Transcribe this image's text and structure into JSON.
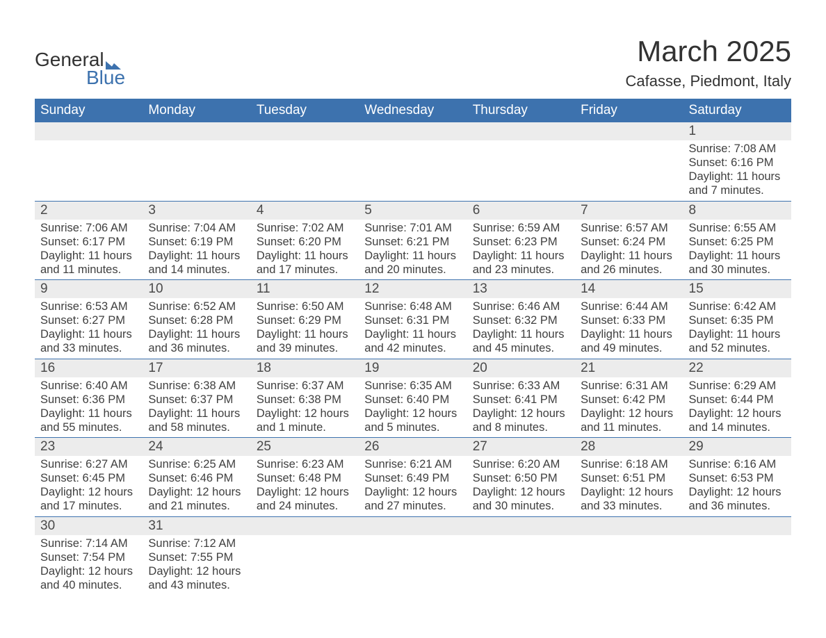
{
  "logo": {
    "text1": "General",
    "text2": "Blue"
  },
  "title": "March 2025",
  "location": "Cafasse, Piedmont, Italy",
  "colors": {
    "header_bg": "#3d72ae",
    "header_text": "#ffffff",
    "daynum_bg": "#ececec",
    "border": "#3d72ae",
    "body_text": "#3f3f3f",
    "logo_accent": "#3d72ae"
  },
  "weekdays": [
    "Sunday",
    "Monday",
    "Tuesday",
    "Wednesday",
    "Thursday",
    "Friday",
    "Saturday"
  ],
  "weeks": [
    [
      null,
      null,
      null,
      null,
      null,
      null,
      {
        "n": "1",
        "sunrise": "7:08 AM",
        "sunset": "6:16 PM",
        "daylight": "11 hours and 7 minutes."
      }
    ],
    [
      {
        "n": "2",
        "sunrise": "7:06 AM",
        "sunset": "6:17 PM",
        "daylight": "11 hours and 11 minutes."
      },
      {
        "n": "3",
        "sunrise": "7:04 AM",
        "sunset": "6:19 PM",
        "daylight": "11 hours and 14 minutes."
      },
      {
        "n": "4",
        "sunrise": "7:02 AM",
        "sunset": "6:20 PM",
        "daylight": "11 hours and 17 minutes."
      },
      {
        "n": "5",
        "sunrise": "7:01 AM",
        "sunset": "6:21 PM",
        "daylight": "11 hours and 20 minutes."
      },
      {
        "n": "6",
        "sunrise": "6:59 AM",
        "sunset": "6:23 PM",
        "daylight": "11 hours and 23 minutes."
      },
      {
        "n": "7",
        "sunrise": "6:57 AM",
        "sunset": "6:24 PM",
        "daylight": "11 hours and 26 minutes."
      },
      {
        "n": "8",
        "sunrise": "6:55 AM",
        "sunset": "6:25 PM",
        "daylight": "11 hours and 30 minutes."
      }
    ],
    [
      {
        "n": "9",
        "sunrise": "6:53 AM",
        "sunset": "6:27 PM",
        "daylight": "11 hours and 33 minutes."
      },
      {
        "n": "10",
        "sunrise": "6:52 AM",
        "sunset": "6:28 PM",
        "daylight": "11 hours and 36 minutes."
      },
      {
        "n": "11",
        "sunrise": "6:50 AM",
        "sunset": "6:29 PM",
        "daylight": "11 hours and 39 minutes."
      },
      {
        "n": "12",
        "sunrise": "6:48 AM",
        "sunset": "6:31 PM",
        "daylight": "11 hours and 42 minutes."
      },
      {
        "n": "13",
        "sunrise": "6:46 AM",
        "sunset": "6:32 PM",
        "daylight": "11 hours and 45 minutes."
      },
      {
        "n": "14",
        "sunrise": "6:44 AM",
        "sunset": "6:33 PM",
        "daylight": "11 hours and 49 minutes."
      },
      {
        "n": "15",
        "sunrise": "6:42 AM",
        "sunset": "6:35 PM",
        "daylight": "11 hours and 52 minutes."
      }
    ],
    [
      {
        "n": "16",
        "sunrise": "6:40 AM",
        "sunset": "6:36 PM",
        "daylight": "11 hours and 55 minutes."
      },
      {
        "n": "17",
        "sunrise": "6:38 AM",
        "sunset": "6:37 PM",
        "daylight": "11 hours and 58 minutes."
      },
      {
        "n": "18",
        "sunrise": "6:37 AM",
        "sunset": "6:38 PM",
        "daylight": "12 hours and 1 minute."
      },
      {
        "n": "19",
        "sunrise": "6:35 AM",
        "sunset": "6:40 PM",
        "daylight": "12 hours and 5 minutes."
      },
      {
        "n": "20",
        "sunrise": "6:33 AM",
        "sunset": "6:41 PM",
        "daylight": "12 hours and 8 minutes."
      },
      {
        "n": "21",
        "sunrise": "6:31 AM",
        "sunset": "6:42 PM",
        "daylight": "12 hours and 11 minutes."
      },
      {
        "n": "22",
        "sunrise": "6:29 AM",
        "sunset": "6:44 PM",
        "daylight": "12 hours and 14 minutes."
      }
    ],
    [
      {
        "n": "23",
        "sunrise": "6:27 AM",
        "sunset": "6:45 PM",
        "daylight": "12 hours and 17 minutes."
      },
      {
        "n": "24",
        "sunrise": "6:25 AM",
        "sunset": "6:46 PM",
        "daylight": "12 hours and 21 minutes."
      },
      {
        "n": "25",
        "sunrise": "6:23 AM",
        "sunset": "6:48 PM",
        "daylight": "12 hours and 24 minutes."
      },
      {
        "n": "26",
        "sunrise": "6:21 AM",
        "sunset": "6:49 PM",
        "daylight": "12 hours and 27 minutes."
      },
      {
        "n": "27",
        "sunrise": "6:20 AM",
        "sunset": "6:50 PM",
        "daylight": "12 hours and 30 minutes."
      },
      {
        "n": "28",
        "sunrise": "6:18 AM",
        "sunset": "6:51 PM",
        "daylight": "12 hours and 33 minutes."
      },
      {
        "n": "29",
        "sunrise": "6:16 AM",
        "sunset": "6:53 PM",
        "daylight": "12 hours and 36 minutes."
      }
    ],
    [
      {
        "n": "30",
        "sunrise": "7:14 AM",
        "sunset": "7:54 PM",
        "daylight": "12 hours and 40 minutes."
      },
      {
        "n": "31",
        "sunrise": "7:12 AM",
        "sunset": "7:55 PM",
        "daylight": "12 hours and 43 minutes."
      },
      null,
      null,
      null,
      null,
      null
    ]
  ],
  "labels": {
    "sunrise": "Sunrise: ",
    "sunset": "Sunset: ",
    "daylight": "Daylight: "
  }
}
